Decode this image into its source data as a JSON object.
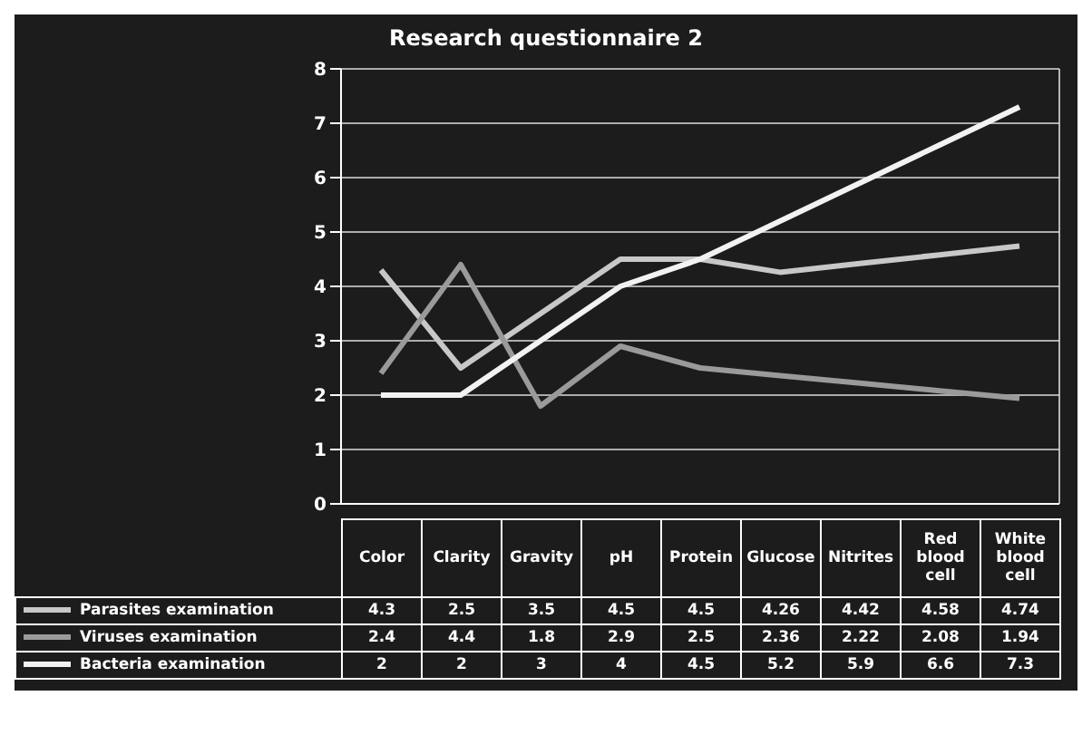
{
  "chart_data": {
    "type": "line",
    "title": "Research questionnaire 2",
    "categories": [
      "Color",
      "Clarity",
      "Gravity",
      "pH",
      "Protein",
      "Glucose",
      "Nitrites",
      "Red blood cell",
      "White blood cell"
    ],
    "series": [
      {
        "name": "Parasites examination",
        "color": "#c8c8c8",
        "values": [
          4.3,
          2.5,
          3.5,
          4.5,
          4.5,
          4.26,
          4.42,
          4.58,
          4.74
        ]
      },
      {
        "name": "Viruses examination",
        "color": "#9a9a9a",
        "values": [
          2.4,
          4.4,
          1.8,
          2.9,
          2.5,
          2.36,
          2.22,
          2.08,
          1.94
        ]
      },
      {
        "name": "Bacteria examination",
        "color": "#f2f2f2",
        "values": [
          2,
          2,
          3,
          4,
          4.5,
          5.2,
          5.9,
          6.6,
          7.3
        ]
      }
    ],
    "ylim": [
      0,
      8
    ],
    "yticks": [
      0,
      1,
      2,
      3,
      4,
      5,
      6,
      7,
      8
    ],
    "grid": true,
    "legend": "bottom",
    "tick_labels": "y",
    "data_labels": true,
    "marker": "none",
    "line_style": "solid"
  }
}
